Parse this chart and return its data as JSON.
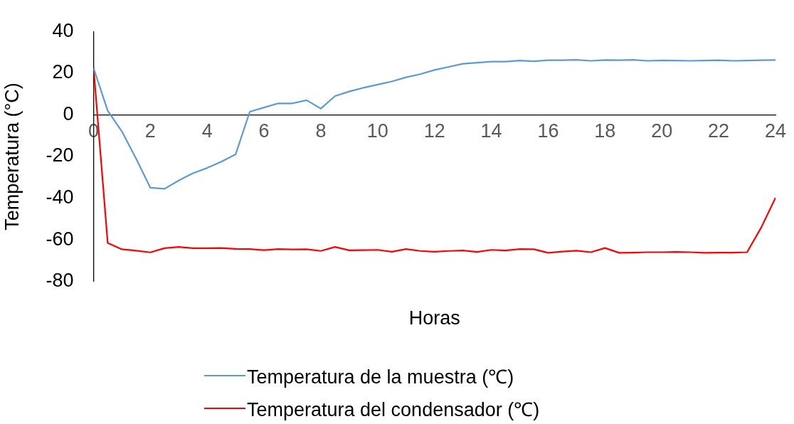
{
  "chart_data": {
    "type": "line",
    "xlabel": "Horas",
    "ylabel": "Temperatura (°C)",
    "x": [
      0,
      0.5,
      1,
      1.5,
      2,
      2.5,
      3,
      3.5,
      4,
      4.5,
      5,
      5.5,
      6,
      6.5,
      7,
      7.5,
      8,
      8.5,
      9,
      9.5,
      10,
      10.5,
      11,
      11.5,
      12,
      12.5,
      13,
      13.5,
      14,
      14.5,
      15,
      15.5,
      16,
      16.5,
      17,
      17.5,
      18,
      18.5,
      19,
      19.5,
      20,
      20.5,
      21,
      21.5,
      22,
      22.5,
      23,
      23.5,
      24
    ],
    "series": [
      {
        "name": "Temperatura de la muestra (℃)",
        "color": "#5b9bd5",
        "values": [
          22.5,
          2,
          -8,
          -21,
          -35,
          -35.5,
          -31.5,
          -28,
          -25.5,
          -22.5,
          -19,
          1.5,
          3.5,
          5.5,
          5.5,
          7,
          3,
          9,
          11.2,
          13,
          14.5,
          16,
          18,
          19.5,
          21.5,
          23,
          24.5,
          25,
          25.5,
          25.5,
          26,
          25.7,
          26.2,
          26.2,
          26.4,
          25.9,
          26.3,
          26.2,
          26.4,
          25.9,
          26.1,
          26,
          25.9,
          26,
          26.2,
          25.9,
          26,
          26.2,
          26.3
        ]
      },
      {
        "name": "Temperatura del condensador (℃)",
        "color": "#ff0000",
        "values": [
          23,
          -61.5,
          -64.5,
          -65.2,
          -66,
          -64,
          -63.4,
          -64,
          -64,
          -63.9,
          -64.3,
          -64.4,
          -64.9,
          -64.4,
          -64.6,
          -64.5,
          -65.3,
          -63.4,
          -65,
          -64.9,
          -64.8,
          -65.7,
          -64.4,
          -65.3,
          -65.7,
          -65.3,
          -65.1,
          -65.8,
          -64.8,
          -65.1,
          -64.4,
          -64.5,
          -66.2,
          -65.6,
          -65.2,
          -65.9,
          -63.9,
          -66.2,
          -66.1,
          -65.9,
          -65.9,
          -65.8,
          -65.9,
          -66.2,
          -66.1,
          -66.1,
          -65.9,
          -54,
          -39.8
        ]
      }
    ],
    "xlim": [
      0,
      24
    ],
    "xticks": [
      0,
      2,
      4,
      6,
      8,
      10,
      12,
      14,
      16,
      18,
      20,
      22,
      24
    ],
    "ylim": [
      -80,
      40
    ],
    "yticks": [
      -80,
      -60,
      -40,
      -20,
      0,
      20,
      40
    ],
    "grid": false,
    "legend": "bottom"
  }
}
